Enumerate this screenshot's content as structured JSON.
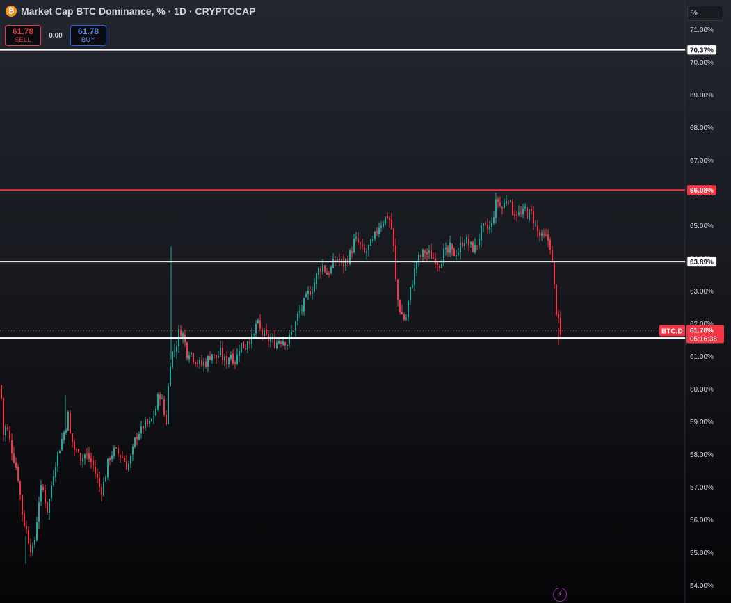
{
  "header": {
    "symbol_title": "Market Cap BTC Dominance, % · 1D · CRYPTOCAP",
    "coin_icon": "bitcoin-icon",
    "coin_glyph": "₿"
  },
  "trade": {
    "sell_price": "61.78",
    "sell_label": "SELL",
    "spread": "0.00",
    "buy_price": "61.78",
    "buy_label": "BUY"
  },
  "scale_unit": "%",
  "colors": {
    "up": "#26a69a",
    "down": "#f23645",
    "line_white": "#ffffff",
    "line_red": "#f23645",
    "axis_text": "#d1d4dc",
    "last_price_bg": "#f23645"
  },
  "chart_data": {
    "type": "candlestick",
    "title": "Market Cap BTC Dominance, % · 1D · CRYPTOCAP",
    "y_axis_ticks": [
      "71.00%",
      "70.00%",
      "69.00%",
      "68.00%",
      "67.00%",
      "66.00%",
      "65.00%",
      "64.00%",
      "63.00%",
      "62.00%",
      "61.00%",
      "60.00%",
      "59.00%",
      "58.00%",
      "57.00%",
      "56.00%",
      "55.00%",
      "54.00%"
    ],
    "y_axis_values": [
      71,
      70,
      69,
      68,
      67,
      66,
      65,
      64,
      63,
      62,
      61,
      60,
      59,
      58,
      57,
      56,
      55,
      54
    ],
    "ylim": [
      53.75,
      71.5
    ],
    "horizontal_lines": [
      {
        "value": 70.37,
        "label": "70.37%",
        "color": "white"
      },
      {
        "value": 66.08,
        "label": "66.08%",
        "color": "red"
      },
      {
        "value": 63.89,
        "label": "63.89%",
        "color": "white"
      },
      {
        "value": 61.55,
        "label": "61.55%",
        "color": "white"
      }
    ],
    "last_price": {
      "series": "BTC.D",
      "value": 61.78,
      "label": "61.78%",
      "countdown": "05:16:38"
    },
    "path_points": [
      [
        0,
        60.1
      ],
      [
        4,
        58.6
      ],
      [
        8,
        58.9
      ],
      [
        14,
        58.3
      ],
      [
        20,
        57.8
      ],
      [
        26,
        57.2
      ],
      [
        30,
        56.3
      ],
      [
        34,
        55.9
      ],
      [
        38,
        55.6
      ],
      [
        42,
        55.2
      ],
      [
        47,
        55.0
      ],
      [
        52,
        56.0
      ],
      [
        56,
        56.8
      ],
      [
        60,
        57.0
      ],
      [
        64,
        56.6
      ],
      [
        67,
        56.3
      ],
      [
        70,
        56.6
      ],
      [
        74,
        57.2
      ],
      [
        78,
        57.7
      ],
      [
        82,
        58.0
      ],
      [
        86,
        58.3
      ],
      [
        90,
        58.6
      ],
      [
        94,
        58.9
      ],
      [
        97,
        59.2
      ],
      [
        100,
        58.6
      ],
      [
        104,
        58.3
      ],
      [
        108,
        58.0
      ],
      [
        112,
        58.2
      ],
      [
        116,
        57.8
      ],
      [
        120,
        58.0
      ],
      [
        126,
        57.9
      ],
      [
        132,
        57.7
      ],
      [
        138,
        57.3
      ],
      [
        142,
        57.0
      ],
      [
        146,
        56.9
      ],
      [
        150,
        57.3
      ],
      [
        154,
        57.7
      ],
      [
        158,
        58.0
      ],
      [
        164,
        58.1
      ],
      [
        170,
        58.0
      ],
      [
        176,
        57.9
      ],
      [
        182,
        57.6
      ],
      [
        186,
        57.8
      ],
      [
        190,
        58.1
      ],
      [
        194,
        58.5
      ],
      [
        198,
        58.7
      ],
      [
        202,
        58.7
      ],
      [
        206,
        58.9
      ],
      [
        210,
        58.9
      ],
      [
        214,
        58.9
      ],
      [
        218,
        59.1
      ],
      [
        222,
        59.3
      ],
      [
        226,
        59.7
      ],
      [
        230,
        59.9
      ],
      [
        234,
        59.3
      ],
      [
        238,
        59.0
      ],
      [
        242,
        60.4
      ],
      [
        245,
        61.1
      ],
      [
        248,
        61.1
      ],
      [
        252,
        61.3
      ],
      [
        256,
        61.7
      ],
      [
        260,
        61.8
      ],
      [
        264,
        61.5
      ],
      [
        268,
        61.1
      ],
      [
        272,
        61.2
      ],
      [
        276,
        61.0
      ],
      [
        280,
        60.9
      ],
      [
        284,
        60.8
      ],
      [
        288,
        60.7
      ],
      [
        292,
        60.8
      ],
      [
        296,
        60.8
      ],
      [
        300,
        61.0
      ],
      [
        304,
        61.1
      ],
      [
        308,
        60.9
      ],
      [
        312,
        61.0
      ],
      [
        316,
        61.1
      ],
      [
        320,
        60.9
      ],
      [
        324,
        60.8
      ],
      [
        328,
        61.0
      ],
      [
        332,
        61.1
      ],
      [
        336,
        60.8
      ],
      [
        340,
        61.0
      ],
      [
        344,
        61.4
      ],
      [
        348,
        61.3
      ],
      [
        352,
        61.3
      ],
      [
        356,
        61.6
      ],
      [
        360,
        61.5
      ],
      [
        364,
        61.6
      ],
      [
        368,
        62.1
      ],
      [
        372,
        61.8
      ],
      [
        376,
        61.7
      ],
      [
        380,
        61.6
      ],
      [
        384,
        61.5
      ],
      [
        388,
        61.5
      ],
      [
        392,
        61.4
      ],
      [
        396,
        61.4
      ],
      [
        400,
        61.5
      ],
      [
        404,
        61.5
      ],
      [
        408,
        61.5
      ],
      [
        412,
        61.4
      ],
      [
        416,
        61.6
      ],
      [
        420,
        61.8
      ],
      [
        424,
        62.0
      ],
      [
        428,
        62.3
      ],
      [
        432,
        62.4
      ],
      [
        436,
        62.6
      ],
      [
        440,
        62.8
      ],
      [
        444,
        63.0
      ],
      [
        448,
        63.1
      ],
      [
        452,
        63.3
      ],
      [
        456,
        63.6
      ],
      [
        460,
        63.7
      ],
      [
        464,
        63.8
      ],
      [
        468,
        63.5
      ],
      [
        472,
        63.6
      ],
      [
        476,
        63.7
      ],
      [
        480,
        63.9
      ],
      [
        484,
        64.0
      ],
      [
        488,
        63.9
      ],
      [
        492,
        63.8
      ],
      [
        496,
        63.9
      ],
      [
        500,
        64.0
      ],
      [
        504,
        64.2
      ],
      [
        508,
        64.5
      ],
      [
        512,
        64.5
      ],
      [
        516,
        64.4
      ],
      [
        520,
        64.2
      ],
      [
        524,
        64.1
      ],
      [
        528,
        64.3
      ],
      [
        532,
        64.4
      ],
      [
        536,
        64.5
      ],
      [
        540,
        64.8
      ],
      [
        544,
        65.0
      ],
      [
        548,
        65.1
      ],
      [
        552,
        65.2
      ],
      [
        556,
        65.3
      ],
      [
        560,
        65.1
      ],
      [
        563,
        64.8
      ],
      [
        565,
        64.3
      ],
      [
        567,
        63.6
      ],
      [
        569,
        63.0
      ],
      [
        571,
        62.7
      ],
      [
        573,
        62.5
      ],
      [
        576,
        62.3
      ],
      [
        579,
        62.2
      ],
      [
        582,
        62.0
      ],
      [
        585,
        62.5
      ],
      [
        588,
        62.9
      ],
      [
        591,
        63.2
      ],
      [
        594,
        63.5
      ],
      [
        598,
        63.9
      ],
      [
        602,
        64.0
      ],
      [
        606,
        64.1
      ],
      [
        610,
        64.2
      ],
      [
        614,
        64.1
      ],
      [
        618,
        64.1
      ],
      [
        622,
        64.0
      ],
      [
        626,
        64.0
      ],
      [
        630,
        63.8
      ],
      [
        634,
        64.0
      ],
      [
        638,
        64.2
      ],
      [
        642,
        64.1
      ],
      [
        646,
        64.3
      ],
      [
        650,
        64.1
      ],
      [
        654,
        64.2
      ],
      [
        658,
        64.2
      ],
      [
        662,
        64.4
      ],
      [
        666,
        64.6
      ],
      [
        670,
        64.5
      ],
      [
        674,
        64.4
      ],
      [
        678,
        64.3
      ],
      [
        682,
        64.3
      ],
      [
        686,
        64.5
      ],
      [
        690,
        64.8
      ],
      [
        694,
        64.9
      ],
      [
        698,
        64.9
      ],
      [
        702,
        64.9
      ],
      [
        706,
        65.0
      ],
      [
        710,
        65.5
      ],
      [
        714,
        65.8
      ],
      [
        718,
        65.6
      ],
      [
        722,
        65.5
      ],
      [
        726,
        65.8
      ],
      [
        730,
        65.9
      ],
      [
        734,
        65.5
      ],
      [
        738,
        65.4
      ],
      [
        742,
        65.4
      ],
      [
        746,
        65.3
      ],
      [
        750,
        65.3
      ],
      [
        754,
        65.5
      ],
      [
        758,
        65.3
      ],
      [
        762,
        65.4
      ],
      [
        766,
        65.2
      ],
      [
        770,
        64.9
      ],
      [
        774,
        64.7
      ],
      [
        778,
        64.6
      ],
      [
        782,
        64.6
      ],
      [
        786,
        64.6
      ],
      [
        790,
        64.4
      ],
      [
        793,
        63.8
      ],
      [
        796,
        63.1
      ],
      [
        799,
        62.4
      ],
      [
        802,
        62.0
      ],
      [
        805,
        61.6
      ]
    ],
    "spikes": [
      {
        "x": 246,
        "high": 64.35,
        "low": 60.9
      },
      {
        "x": 37,
        "high": 55.5,
        "low": 54.65
      },
      {
        "x": 94,
        "high": 59.8,
        "low": 58.8
      },
      {
        "x": 803,
        "high": 61.85,
        "low": 61.35
      }
    ]
  }
}
